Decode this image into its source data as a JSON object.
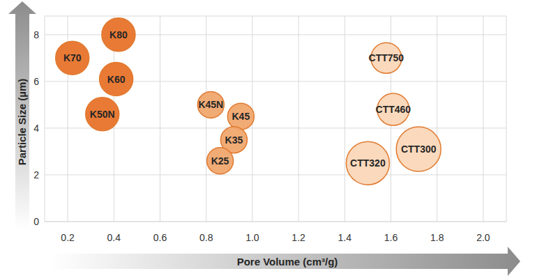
{
  "chart_data": {
    "type": "scatter",
    "x_label": "Pore Volume (cm³/g)",
    "y_label": "Particle Size (µm)",
    "labels": [
      "K70",
      "K80",
      "K60",
      "K50N",
      "K45N",
      "K45",
      "K35",
      "K25",
      "CTT750",
      "CTT460",
      "CTT300",
      "CTT320"
    ],
    "x": [
      0.22,
      0.42,
      0.41,
      0.35,
      0.82,
      0.95,
      0.92,
      0.86,
      1.58,
      1.61,
      1.72,
      1.5
    ],
    "values": [
      7.0,
      8.0,
      6.1,
      4.6,
      5.0,
      4.5,
      3.5,
      2.6,
      7.0,
      4.8,
      3.1,
      2.5
    ],
    "sizes": [
      24,
      24,
      24,
      24,
      19,
      19,
      19,
      19,
      22,
      23,
      32,
      31
    ],
    "colors": [
      "#e8732a",
      "#e8732a",
      "#e8732a",
      "#e8732a",
      "#f0a66e",
      "#f0a66e",
      "#f0a66e",
      "#f0a66e",
      "#fad7b8",
      "#fad7b8",
      "#fad7b8",
      "#fad7b8"
    ],
    "xlim": [
      0.1,
      2.1
    ],
    "xticks": [
      0.2,
      0.4,
      0.6,
      0.8,
      {
        "value": 1,
        "label": "1.0"
      },
      1.2,
      1.4,
      1.6,
      1.8,
      {
        "value": 2,
        "label": "2.0"
      }
    ],
    "ylim": [
      0,
      8.8
    ],
    "yticks": [
      0,
      2,
      4,
      6,
      8
    ],
    "grid": true
  }
}
